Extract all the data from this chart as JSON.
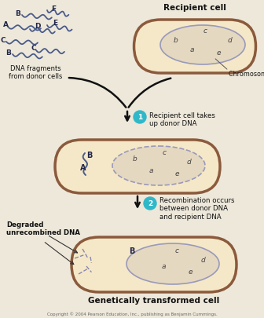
{
  "bg_color": "#ede8da",
  "cell_fill": "#f5e8c8",
  "cell_border": "#8B5A3C",
  "chrom_fill": "#e5d8c0",
  "chrom_border": "#9999bb",
  "dna_color": "#4a5a8a",
  "step_color": "#30b8c8",
  "txt_color": "#111111",
  "copyright": "Copyright © 2004 Pearson Education, Inc., publishing as Benjamin Cummings.",
  "recipient_title": "Recipient cell",
  "chrom_dna_label": "Chromosomal DNA",
  "dna_frags_label": "DNA fragments\nfrom donor cells",
  "step1_label": "Recipient cell takes\nup donor DNA",
  "step2_label": "Recombination occurs\nbetween donor DNA\nand recipient DNA",
  "degraded_label": "Degraded\nunrecombined DNA",
  "transformed_label": "Genetically transformed cell"
}
